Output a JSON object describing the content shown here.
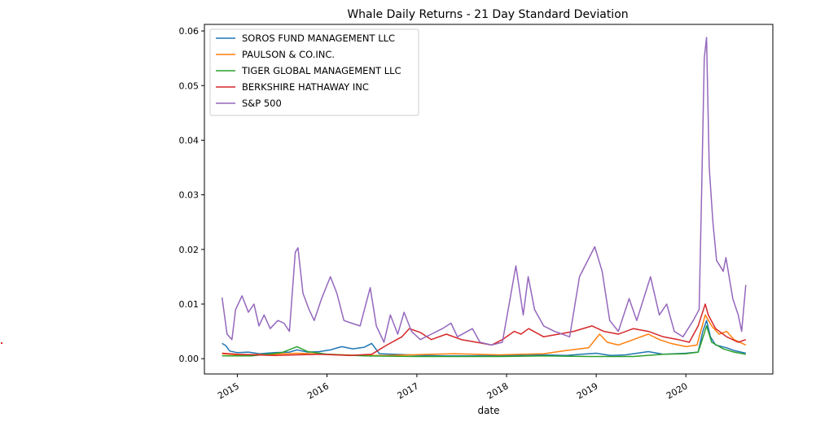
{
  "chart_data": {
    "type": "line",
    "title": "Whale Daily Returns - 21 Day Standard Deviation",
    "xlabel": "date",
    "ylabel": "",
    "x_ticks": [
      "2015",
      "2016",
      "2017",
      "2018",
      "2019",
      "2020"
    ],
    "y_ticks": [
      "0.00",
      "0.01",
      "0.02",
      "0.03",
      "0.04",
      "0.05",
      "0.06"
    ],
    "xlim": [
      "2014-08-20",
      "2020-12-20"
    ],
    "ylim": [
      -0.0028,
      0.0612
    ],
    "grid": false,
    "legend_position": "upper-left",
    "series": [
      {
        "name": "SOROS FUND MANAGEMENT LLC",
        "color": "#1f77b4",
        "points": [
          [
            "2014-10-31",
            0.0028
          ],
          [
            "2014-11-15",
            0.0024
          ],
          [
            "2014-12-01",
            0.0014
          ],
          [
            "2015-01-01",
            0.0011
          ],
          [
            "2015-02-15",
            0.0012
          ],
          [
            "2015-04-01",
            0.0009
          ],
          [
            "2015-06-01",
            0.0011
          ],
          [
            "2015-08-01",
            0.0012
          ],
          [
            "2015-09-01",
            0.0016
          ],
          [
            "2015-10-15",
            0.0012
          ],
          [
            "2015-12-01",
            0.0013
          ],
          [
            "2016-01-15",
            0.0016
          ],
          [
            "2016-03-01",
            0.0022
          ],
          [
            "2016-04-15",
            0.0018
          ],
          [
            "2016-06-01",
            0.0021
          ],
          [
            "2016-07-01",
            0.0028
          ],
          [
            "2016-08-01",
            0.0009
          ],
          [
            "2016-10-01",
            0.0008
          ],
          [
            "2016-12-01",
            0.0007
          ],
          [
            "2017-02-01",
            0.0006
          ],
          [
            "2017-05-01",
            0.0005
          ],
          [
            "2017-08-01",
            0.0005
          ],
          [
            "2017-11-01",
            0.0006
          ],
          [
            "2018-01-15",
            0.0006
          ],
          [
            "2018-03-01",
            0.0006
          ],
          [
            "2018-06-01",
            0.0007
          ],
          [
            "2018-09-01",
            0.0006
          ],
          [
            "2018-11-01",
            0.0008
          ],
          [
            "2019-01-01",
            0.001
          ],
          [
            "2019-03-01",
            0.0006
          ],
          [
            "2019-05-01",
            0.0007
          ],
          [
            "2019-08-01",
            0.0013
          ],
          [
            "2019-10-01",
            0.0008
          ],
          [
            "2020-01-01",
            0.001
          ],
          [
            "2020-02-20",
            0.0012
          ],
          [
            "2020-03-10",
            0.005
          ],
          [
            "2020-03-25",
            0.007
          ],
          [
            "2020-04-10",
            0.004
          ],
          [
            "2020-05-01",
            0.0025
          ],
          [
            "2020-06-15",
            0.002
          ],
          [
            "2020-07-15",
            0.0015
          ],
          [
            "2020-09-01",
            0.001
          ]
        ]
      },
      {
        "name": "PAULSON & CO.INC.",
        "color": "#ff7f0e",
        "points": [
          [
            "2014-10-31",
            0.0009
          ],
          [
            "2015-01-01",
            0.0007
          ],
          [
            "2015-06-01",
            0.0008
          ],
          [
            "2015-09-01",
            0.001
          ],
          [
            "2016-01-01",
            0.0008
          ],
          [
            "2016-06-01",
            0.0006
          ],
          [
            "2016-09-01",
            0.0006
          ],
          [
            "2016-12-01",
            0.0007
          ],
          [
            "2017-03-01",
            0.0008
          ],
          [
            "2017-06-01",
            0.0009
          ],
          [
            "2017-09-01",
            0.0008
          ],
          [
            "2017-12-01",
            0.0007
          ],
          [
            "2018-03-01",
            0.0008
          ],
          [
            "2018-06-01",
            0.0009
          ],
          [
            "2018-09-01",
            0.0015
          ],
          [
            "2018-12-01",
            0.002
          ],
          [
            "2019-01-15",
            0.0045
          ],
          [
            "2019-02-15",
            0.003
          ],
          [
            "2019-04-01",
            0.0025
          ],
          [
            "2019-06-01",
            0.0035
          ],
          [
            "2019-08-01",
            0.0045
          ],
          [
            "2019-09-15",
            0.0035
          ],
          [
            "2019-11-01",
            0.0028
          ],
          [
            "2020-01-01",
            0.0022
          ],
          [
            "2020-02-15",
            0.0025
          ],
          [
            "2020-03-20",
            0.008
          ],
          [
            "2020-04-15",
            0.006
          ],
          [
            "2020-05-15",
            0.0045
          ],
          [
            "2020-06-15",
            0.005
          ],
          [
            "2020-07-15",
            0.0035
          ],
          [
            "2020-09-01",
            0.0025
          ]
        ]
      },
      {
        "name": "TIGER GLOBAL MANAGEMENT LLC",
        "color": "#2ca02c",
        "points": [
          [
            "2014-10-31",
            0.0005
          ],
          [
            "2015-03-01",
            0.0005
          ],
          [
            "2015-07-01",
            0.0011
          ],
          [
            "2015-09-01",
            0.0022
          ],
          [
            "2015-10-15",
            0.0013
          ],
          [
            "2016-01-01",
            0.0008
          ],
          [
            "2016-06-01",
            0.0005
          ],
          [
            "2017-01-01",
            0.0004
          ],
          [
            "2017-06-01",
            0.0004
          ],
          [
            "2017-12-01",
            0.0004
          ],
          [
            "2018-06-01",
            0.0005
          ],
          [
            "2018-12-01",
            0.0004
          ],
          [
            "2019-06-01",
            0.0004
          ],
          [
            "2019-10-01",
            0.0008
          ],
          [
            "2020-01-01",
            0.0009
          ],
          [
            "2020-02-20",
            0.0012
          ],
          [
            "2020-03-15",
            0.0045
          ],
          [
            "2020-03-25",
            0.006
          ],
          [
            "2020-04-15",
            0.003
          ],
          [
            "2020-06-01",
            0.0018
          ],
          [
            "2020-07-15",
            0.0012
          ],
          [
            "2020-09-01",
            0.0008
          ]
        ]
      },
      {
        "name": "BERKSHIRE HATHAWAY INC",
        "color": "#d62728",
        "points": [
          [
            "2014-10-31",
            0.001
          ],
          [
            "2015-01-01",
            0.0008
          ],
          [
            "2015-06-01",
            0.0006
          ],
          [
            "2015-12-01",
            0.0008
          ],
          [
            "2016-04-01",
            0.0006
          ],
          [
            "2016-07-01",
            0.0008
          ],
          [
            "2016-09-01",
            0.0025
          ],
          [
            "2016-11-01",
            0.004
          ],
          [
            "2016-12-01",
            0.0055
          ],
          [
            "2017-01-15",
            0.0048
          ],
          [
            "2017-03-01",
            0.0035
          ],
          [
            "2017-05-01",
            0.0045
          ],
          [
            "2017-07-01",
            0.0035
          ],
          [
            "2017-09-01",
            0.003
          ],
          [
            "2017-11-01",
            0.0025
          ],
          [
            "2017-12-15",
            0.0035
          ],
          [
            "2018-02-01",
            0.005
          ],
          [
            "2018-03-01",
            0.0045
          ],
          [
            "2018-04-01",
            0.0055
          ],
          [
            "2018-06-01",
            0.004
          ],
          [
            "2018-08-01",
            0.0045
          ],
          [
            "2018-10-01",
            0.005
          ],
          [
            "2018-12-15",
            0.006
          ],
          [
            "2019-02-01",
            0.005
          ],
          [
            "2019-04-01",
            0.0045
          ],
          [
            "2019-06-01",
            0.0055
          ],
          [
            "2019-08-01",
            0.005
          ],
          [
            "2019-10-01",
            0.004
          ],
          [
            "2019-12-01",
            0.0035
          ],
          [
            "2020-01-15",
            0.003
          ],
          [
            "2020-02-20",
            0.006
          ],
          [
            "2020-03-20",
            0.01
          ],
          [
            "2020-04-01",
            0.008
          ],
          [
            "2020-05-01",
            0.0055
          ],
          [
            "2020-06-15",
            0.004
          ],
          [
            "2020-08-01",
            0.003
          ],
          [
            "2020-09-01",
            0.0035
          ]
        ]
      },
      {
        "name": "S&P 500",
        "color": "#9467bd",
        "points": [
          [
            "2014-10-31",
            0.0112
          ],
          [
            "2014-11-20",
            0.0045
          ],
          [
            "2014-12-10",
            0.0035
          ],
          [
            "2014-12-25",
            0.009
          ],
          [
            "2015-01-20",
            0.0115
          ],
          [
            "2015-02-15",
            0.0085
          ],
          [
            "2015-03-10",
            0.01
          ],
          [
            "2015-03-30",
            0.006
          ],
          [
            "2015-04-20",
            0.008
          ],
          [
            "2015-05-15",
            0.0055
          ],
          [
            "2015-06-15",
            0.007
          ],
          [
            "2015-07-10",
            0.0065
          ],
          [
            "2015-08-01",
            0.005
          ],
          [
            "2015-08-25",
            0.0195
          ],
          [
            "2015-09-05",
            0.0203
          ],
          [
            "2015-09-25",
            0.012
          ],
          [
            "2015-10-20",
            0.009
          ],
          [
            "2015-11-10",
            0.007
          ],
          [
            "2015-12-10",
            0.011
          ],
          [
            "2016-01-15",
            0.015
          ],
          [
            "2016-02-10",
            0.012
          ],
          [
            "2016-03-10",
            0.007
          ],
          [
            "2016-04-10",
            0.0065
          ],
          [
            "2016-05-15",
            0.006
          ],
          [
            "2016-06-25",
            0.013
          ],
          [
            "2016-07-20",
            0.006
          ],
          [
            "2016-08-20",
            0.003
          ],
          [
            "2016-09-15",
            0.008
          ],
          [
            "2016-10-15",
            0.0045
          ],
          [
            "2016-11-10",
            0.0085
          ],
          [
            "2016-12-10",
            0.005
          ],
          [
            "2017-01-15",
            0.0035
          ],
          [
            "2017-03-01",
            0.0045
          ],
          [
            "2017-04-15",
            0.0055
          ],
          [
            "2017-05-20",
            0.0065
          ],
          [
            "2017-06-15",
            0.004
          ],
          [
            "2017-08-15",
            0.0055
          ],
          [
            "2017-09-15",
            0.003
          ],
          [
            "2017-11-01",
            0.0025
          ],
          [
            "2017-12-15",
            0.003
          ],
          [
            "2018-02-08",
            0.017
          ],
          [
            "2018-03-10",
            0.008
          ],
          [
            "2018-03-30",
            0.015
          ],
          [
            "2018-04-25",
            0.009
          ],
          [
            "2018-06-01",
            0.006
          ],
          [
            "2018-07-15",
            0.005
          ],
          [
            "2018-09-15",
            0.004
          ],
          [
            "2018-10-25",
            0.015
          ],
          [
            "2018-12-26",
            0.0205
          ],
          [
            "2019-01-25",
            0.016
          ],
          [
            "2019-02-25",
            0.007
          ],
          [
            "2019-04-01",
            0.005
          ],
          [
            "2019-05-15",
            0.011
          ],
          [
            "2019-06-15",
            0.007
          ],
          [
            "2019-08-10",
            0.015
          ],
          [
            "2019-09-15",
            0.008
          ],
          [
            "2019-10-15",
            0.01
          ],
          [
            "2019-11-15",
            0.005
          ],
          [
            "2019-12-20",
            0.004
          ],
          [
            "2020-01-31",
            0.007
          ],
          [
            "2020-02-24",
            0.009
          ],
          [
            "2020-03-05",
            0.03
          ],
          [
            "2020-03-16",
            0.055
          ],
          [
            "2020-03-25",
            0.0588
          ],
          [
            "2020-04-05",
            0.035
          ],
          [
            "2020-04-20",
            0.025
          ],
          [
            "2020-05-05",
            0.018
          ],
          [
            "2020-06-01",
            0.016
          ],
          [
            "2020-06-12",
            0.0185
          ],
          [
            "2020-07-10",
            0.011
          ],
          [
            "2020-08-01",
            0.008
          ],
          [
            "2020-08-15",
            0.005
          ],
          [
            "2020-09-01",
            0.0135
          ]
        ]
      }
    ]
  }
}
